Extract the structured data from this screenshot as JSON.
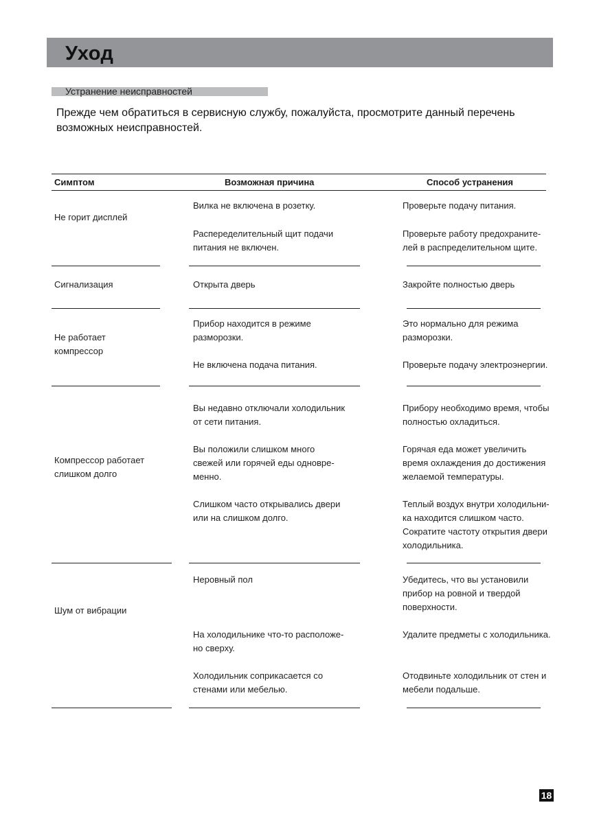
{
  "header": {
    "title": "Уход"
  },
  "section": {
    "title": "Устранение неисправностей"
  },
  "intro": "Прежде чем обратиться в сервисную службу, пожалуйста, просмотрите данный перечень\nвозможных неисправностей.",
  "table": {
    "headers": [
      "Симптом",
      "Возможная причина",
      "Способ устранения"
    ],
    "rows": [
      {
        "symptom": "Не горит дисплей",
        "causes": [
          "Вилка не включена в розетку.",
          "Распеределительный щит подачи\nпитания не включен."
        ],
        "fixes": [
          "Проверьте подачу питания.",
          "Проверьте работу предохраните-\nлей в распределительном щите."
        ]
      },
      {
        "symptom": "Сигнализация",
        "causes": [
          "Открыта дверь"
        ],
        "fixes": [
          "Закройте полностью дверь"
        ]
      },
      {
        "symptom": "Не работает\nкомпрессор",
        "causes": [
          "Прибор находится в режиме\nразморозки.",
          "Не включена подача питания."
        ],
        "fixes": [
          "Это нормально для режима\nразморозки.",
          "Проверьте подачу электроэнергии."
        ]
      },
      {
        "symptom": "Компрессор работает\nслишком долго",
        "causes": [
          "Вы недавно отключали холодильник\nот сети питания.",
          "Вы положили слишком много\nсвежей или горячей еды одновре-\nменно.",
          "Слишком часто открывались двери\nили на слишком долго."
        ],
        "fixes": [
          "Прибору необходимо время, чтобы\nполностью охладиться.",
          "Горячая еда может увеличить\nвремя охлаждения до достижения\nжелаемой температуры.",
          "Теплый воздух внутри холодильни-\nка находится слишком часто.\nСократите частоту открытия двери\nхолодильника."
        ]
      },
      {
        "symptom": "Шум от вибрации",
        "causes": [
          "Неровный пол",
          "На холодильнике что-то расположе-\nно сверху.",
          "Холодильник соприкасается со\nстенами или мебелью."
        ],
        "fixes": [
          "Убедитесь, что вы установили\nприбор на ровной и твердой\nповерхности.",
          "Удалите предметы с холодильника.",
          "Отодвиньте холодильник от стен и\nмебели подальше."
        ]
      }
    ]
  },
  "page_number": "18",
  "colors": {
    "header_bar": "#939598",
    "section_bar": "#bcbdbf"
  }
}
